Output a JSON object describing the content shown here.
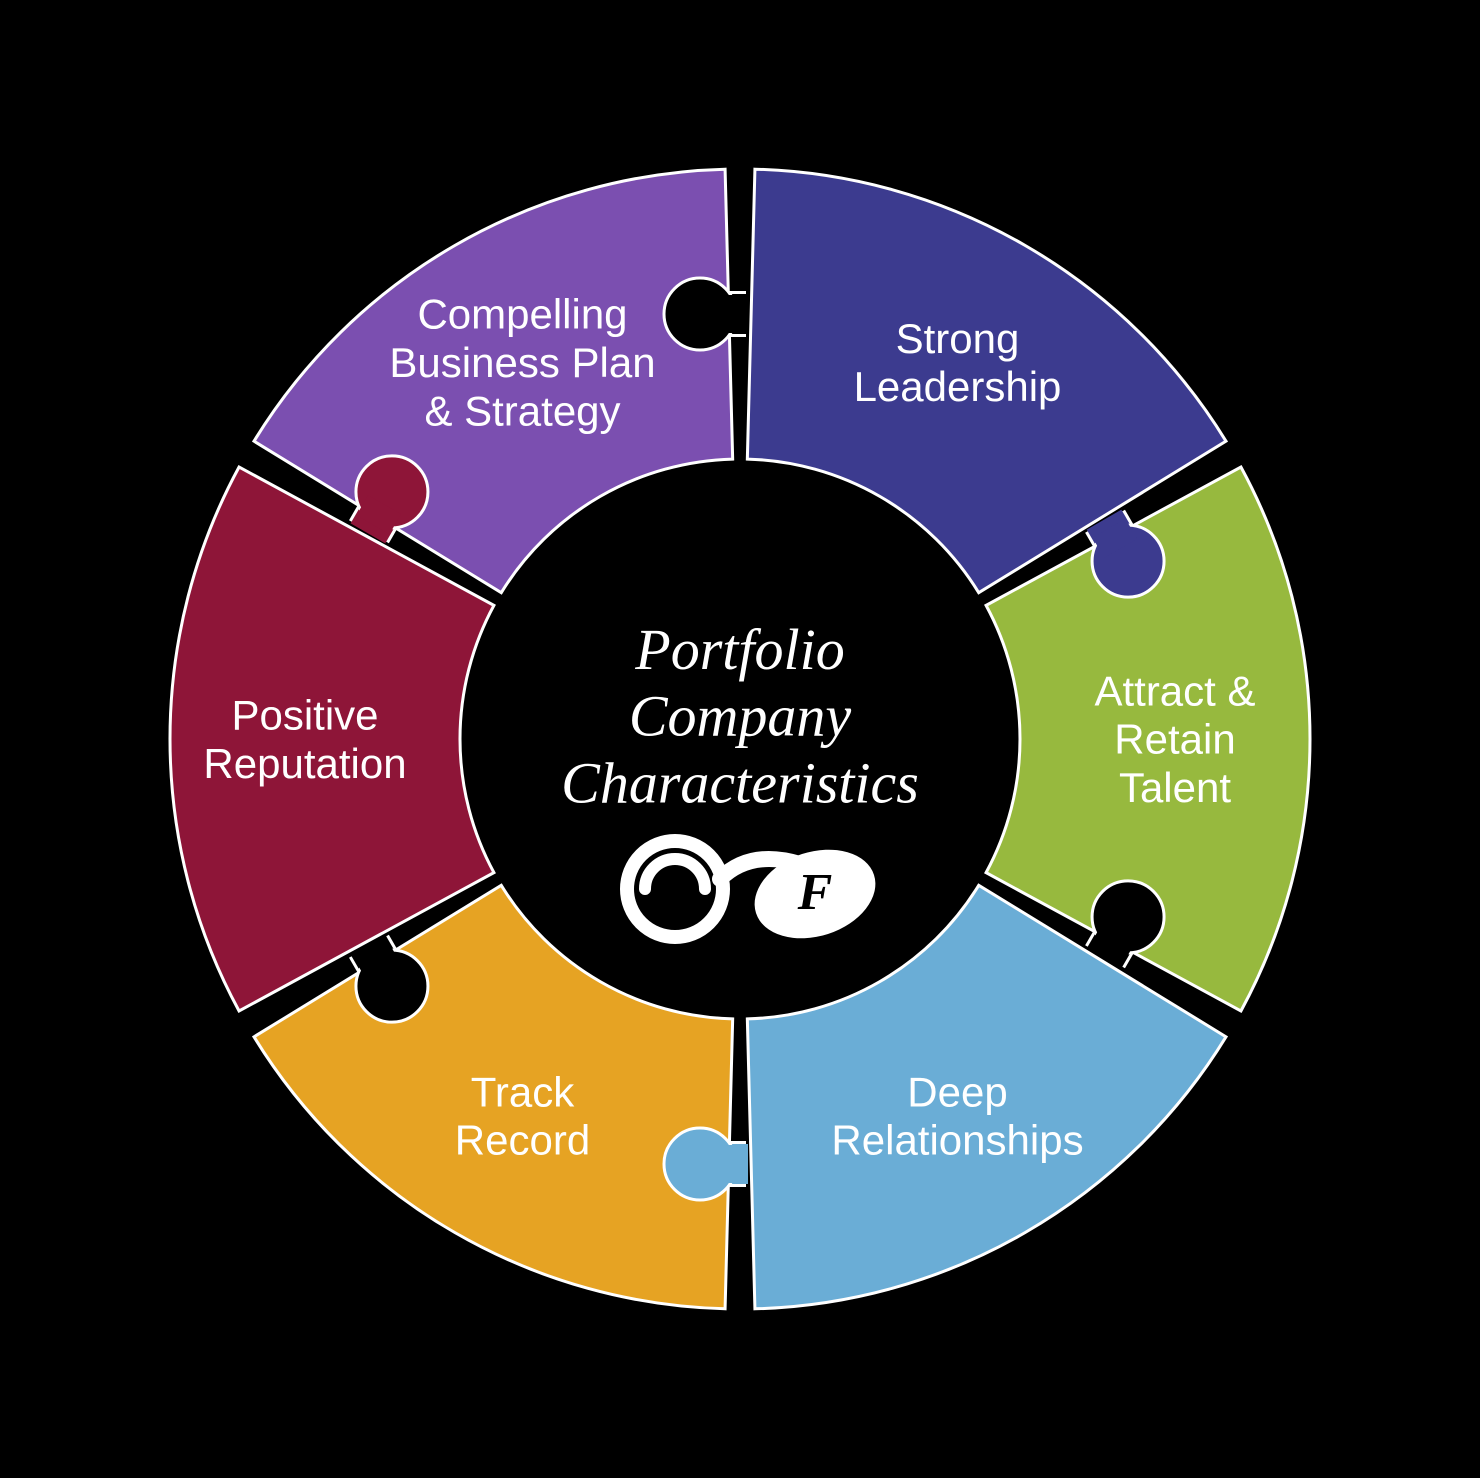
{
  "diagram": {
    "type": "circular-puzzle",
    "background_color": "#000000",
    "outer_radius": 570,
    "inner_radius": 280,
    "gap_deg": 3,
    "stroke_color": "#ffffff",
    "stroke_width": 3,
    "center": {
      "line1": "Portfolio",
      "line2": "Company",
      "line3": "Characteristics",
      "bg": "#000000",
      "title_fontsize": 58,
      "logo_text": "e F"
    },
    "label_fontsize": 42,
    "label_color": "#ffffff",
    "label_weight": 300,
    "knob_radius": 36,
    "knob_neck": 20,
    "segments": [
      {
        "id": "strong-leadership",
        "color": "#3c3b8f",
        "lines": [
          "Strong",
          "Leadership"
        ],
        "knob_out": true
      },
      {
        "id": "attract-retain",
        "color": "#97b93e",
        "lines": [
          "Attract &",
          "Retain",
          "Talent"
        ],
        "knob_out": false
      },
      {
        "id": "deep-relationships",
        "color": "#6aadd6",
        "lines": [
          "Deep",
          "Relationships"
        ],
        "knob_out": true
      },
      {
        "id": "track-record",
        "color": "#e6a323",
        "lines": [
          "Track",
          "Record"
        ],
        "knob_out": false
      },
      {
        "id": "positive-reputation",
        "color": "#8e1538",
        "lines": [
          "Positive",
          "Reputation"
        ],
        "knob_out": true
      },
      {
        "id": "business-plan",
        "color": "#7b4fb0",
        "lines": [
          "Compelling",
          "Business Plan",
          "& Strategy"
        ],
        "knob_out": false
      }
    ]
  }
}
